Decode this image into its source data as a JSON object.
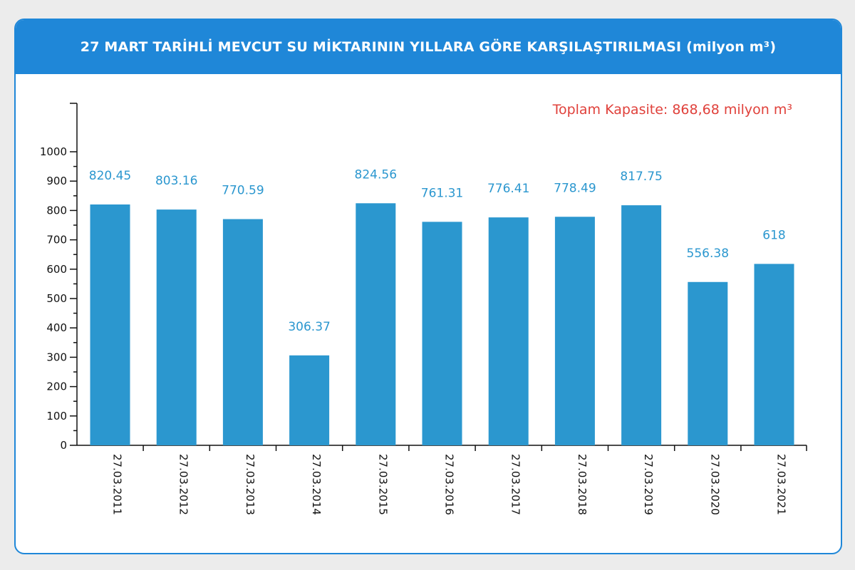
{
  "chart_data": {
    "type": "bar",
    "title": "27 MART TARİHLİ MEVCUT SU MİKTARININ YILLARA GÖRE KARŞILAŞTIRILMASI (milyon m³)",
    "annotation": "Toplam Kapasite: 868,68 milyon m³",
    "categories": [
      "27.03.2011",
      "27.03.2012",
      "27.03.2013",
      "27.03.2014",
      "27.03.2015",
      "27.03.2016",
      "27.03.2017",
      "27.03.2018",
      "27.03.2019",
      "27.03.2020",
      "27.03.2021"
    ],
    "values": [
      820.45,
      803.16,
      770.59,
      306.37,
      824.56,
      761.31,
      776.41,
      778.49,
      817.75,
      556.38,
      618
    ],
    "value_labels": [
      "820.45",
      "803.16",
      "770.59",
      "306.37",
      "824.56",
      "761.31",
      "776.41",
      "778.49",
      "817.75",
      "556.38",
      "618"
    ],
    "yticks": [
      0,
      100,
      200,
      300,
      400,
      500,
      600,
      700,
      800,
      900,
      1000
    ],
    "ylim": [
      0,
      1000
    ],
    "xlabel": "",
    "ylabel": "",
    "grid": false,
    "colors": {
      "bar": "#2b97cf",
      "value_label": "#2b97cf",
      "annotation": "#e0413b",
      "header": "#1f87d8",
      "axis": "#111111"
    }
  }
}
